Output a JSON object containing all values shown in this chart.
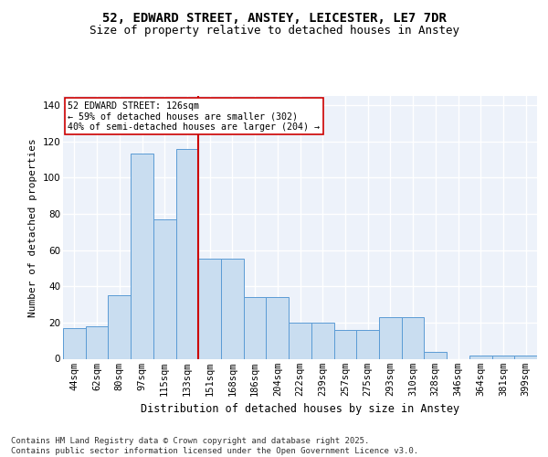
{
  "title_line1": "52, EDWARD STREET, ANSTEY, LEICESTER, LE7 7DR",
  "title_line2": "Size of property relative to detached houses in Anstey",
  "xlabel": "Distribution of detached houses by size in Anstey",
  "ylabel": "Number of detached properties",
  "categories": [
    "44sqm",
    "62sqm",
    "80sqm",
    "97sqm",
    "115sqm",
    "133sqm",
    "151sqm",
    "168sqm",
    "186sqm",
    "204sqm",
    "222sqm",
    "239sqm",
    "257sqm",
    "275sqm",
    "293sqm",
    "310sqm",
    "328sqm",
    "346sqm",
    "364sqm",
    "381sqm",
    "399sqm"
  ],
  "values": [
    17,
    18,
    35,
    113,
    77,
    116,
    55,
    55,
    34,
    34,
    20,
    20,
    16,
    16,
    23,
    23,
    4,
    0,
    2,
    2,
    2
  ],
  "bar_color": "#c9ddf0",
  "bar_edge_color": "#5b9bd5",
  "vline_x": 5.5,
  "vline_color": "#cc0000",
  "annotation_text": "52 EDWARD STREET: 126sqm\n← 59% of detached houses are smaller (302)\n40% of semi-detached houses are larger (204) →",
  "annotation_box_color": "#ffffff",
  "annotation_box_edge": "#cc0000",
  "ylim": [
    0,
    145
  ],
  "background_color": "#edf2fa",
  "grid_color": "#ffffff",
  "footer_text": "Contains HM Land Registry data © Crown copyright and database right 2025.\nContains public sector information licensed under the Open Government Licence v3.0.",
  "title_fontsize": 10,
  "subtitle_fontsize": 9,
  "axis_label_fontsize": 8,
  "tick_fontsize": 7.5,
  "footer_fontsize": 6.5
}
